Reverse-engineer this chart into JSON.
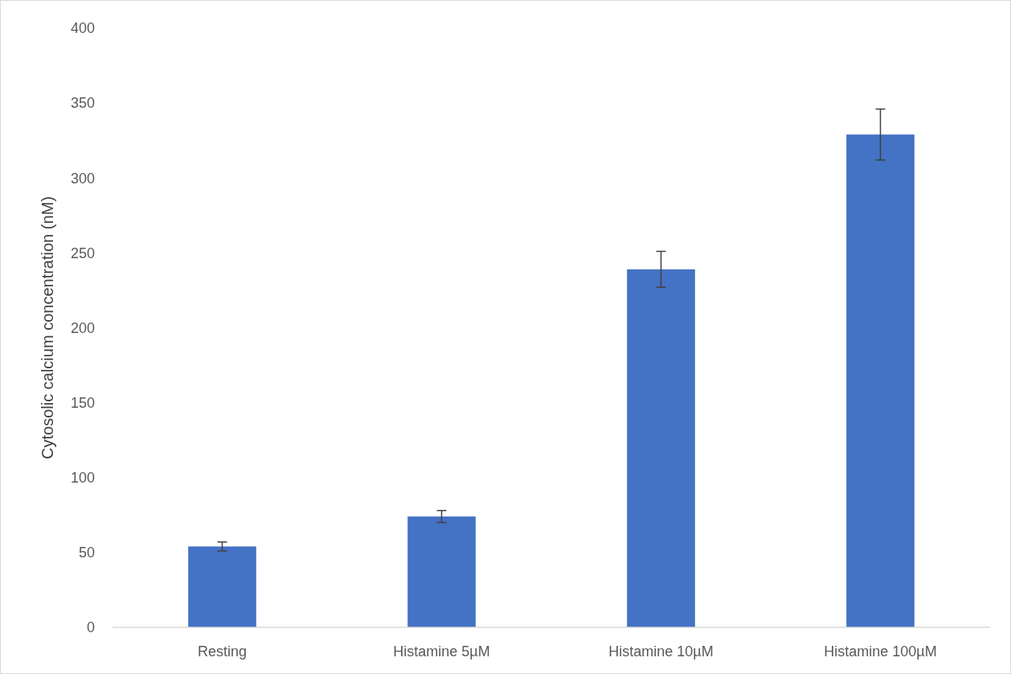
{
  "chart_data": {
    "type": "bar",
    "ylabel": "Cytosolic calcium concentration (nM)",
    "categories": [
      "Resting",
      "Histamine 5µM",
      "Histamine 10µM",
      "Histamine 100µM"
    ],
    "values": [
      54,
      74,
      239,
      329
    ],
    "errors": [
      3,
      4,
      12,
      17
    ],
    "color": "#4472c4",
    "ylim": [
      0,
      400
    ],
    "yticks": [
      0,
      50,
      100,
      150,
      200,
      250,
      300,
      350,
      400
    ],
    "grid": false
  }
}
